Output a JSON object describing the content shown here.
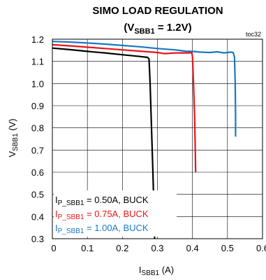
{
  "chart_data": {
    "type": "line",
    "title_line1": "SIMO LOAD REGULATION",
    "title_line2": {
      "open": "(V",
      "sub": "SBB1",
      "close": " = 1.2V)"
    },
    "corner_note": "toc32",
    "xlabel": {
      "main": "I",
      "sub": "SBB1",
      "unit": " (A)"
    },
    "ylabel": {
      "main": "V",
      "sub": "SBB1",
      "unit": " (V)"
    },
    "xlim": [
      0,
      0.6
    ],
    "ylim": [
      0.3,
      1.2
    ],
    "xticks": [
      0,
      0.1,
      0.2,
      0.3,
      0.4,
      0.5,
      0.6
    ],
    "xtick_labels": [
      "0",
      "0.1",
      "0.2",
      "0.3",
      "0.4",
      "0.5",
      "0.6"
    ],
    "yticks": [
      0.3,
      0.4,
      0.5,
      0.6,
      0.7,
      0.8,
      0.9,
      1.0,
      1.1,
      1.2
    ],
    "ytick_labels": [
      "0.3",
      "0.4",
      "0.5",
      "0.6",
      "0.7",
      "0.8",
      "0.9",
      "1.0",
      "1.1",
      "1.2"
    ],
    "grid": true,
    "legend_placement": "bottom-left",
    "series": [
      {
        "name": {
          "main": "I",
          "sub": "P_SBB1",
          "rest": " = 0.50A, BUCK"
        },
        "color": "#000000",
        "points": [
          [
            0,
            1.16
          ],
          [
            0.05,
            1.153
          ],
          [
            0.1,
            1.145
          ],
          [
            0.15,
            1.138
          ],
          [
            0.2,
            1.13
          ],
          [
            0.25,
            1.122
          ],
          [
            0.272,
            1.118
          ],
          [
            0.276,
            1.11
          ],
          [
            0.279,
            1.0
          ],
          [
            0.283,
            0.8
          ],
          [
            0.287,
            0.6
          ],
          [
            0.29,
            0.43
          ],
          [
            0.292,
            0.3
          ]
        ]
      },
      {
        "name": {
          "main": "I",
          "sub": "P_SBB1",
          "rest": " = 0.75A, BUCK"
        },
        "color": "#e8141a",
        "points": [
          [
            0,
            1.175
          ],
          [
            0.05,
            1.17
          ],
          [
            0.1,
            1.164
          ],
          [
            0.15,
            1.158
          ],
          [
            0.2,
            1.152
          ],
          [
            0.25,
            1.146
          ],
          [
            0.3,
            1.14
          ],
          [
            0.32,
            1.135
          ],
          [
            0.35,
            1.138
          ],
          [
            0.39,
            1.138
          ],
          [
            0.398,
            1.14
          ],
          [
            0.4,
            1.12
          ],
          [
            0.403,
            1.0
          ],
          [
            0.406,
            0.85
          ],
          [
            0.408,
            0.7
          ],
          [
            0.409,
            0.6
          ]
        ]
      },
      {
        "name": {
          "main": "I",
          "sub": "P_SBB1",
          "rest": " = 1.00A, BUCK"
        },
        "color": "#1a78c2",
        "points": [
          [
            0,
            1.19
          ],
          [
            0.05,
            1.187
          ],
          [
            0.1,
            1.183
          ],
          [
            0.15,
            1.178
          ],
          [
            0.2,
            1.172
          ],
          [
            0.25,
            1.166
          ],
          [
            0.3,
            1.158
          ],
          [
            0.35,
            1.152
          ],
          [
            0.38,
            1.146
          ],
          [
            0.4,
            1.145
          ],
          [
            0.42,
            1.142
          ],
          [
            0.45,
            1.14
          ],
          [
            0.47,
            1.143
          ],
          [
            0.49,
            1.138
          ],
          [
            0.51,
            1.142
          ],
          [
            0.516,
            1.14
          ],
          [
            0.52,
            1.12
          ],
          [
            0.522,
            1.0
          ],
          [
            0.523,
            0.86
          ],
          [
            0.523,
            0.76
          ]
        ]
      }
    ]
  }
}
